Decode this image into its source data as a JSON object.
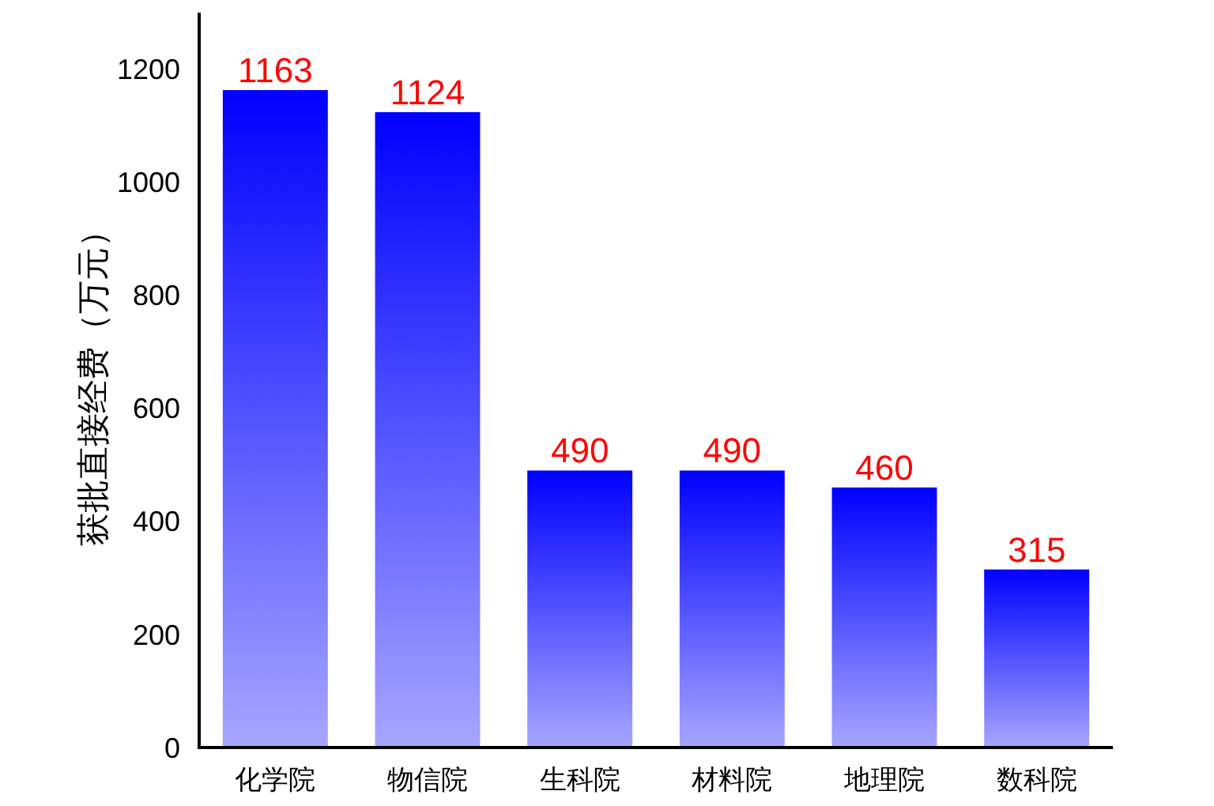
{
  "chart_data": {
    "type": "bar",
    "ylabel": "获批直接经费（万元）",
    "categories": [
      "化学院",
      "物信院",
      "生科院",
      "材料院",
      "地理院",
      "数科院"
    ],
    "values": [
      1163,
      1124,
      490,
      490,
      460,
      315
    ],
    "color": "#0000ff",
    "ylim": [
      0,
      1300
    ],
    "yticks": [
      0,
      200,
      400,
      600,
      800,
      1000,
      1200
    ],
    "grid": false,
    "data_labels": true
  }
}
